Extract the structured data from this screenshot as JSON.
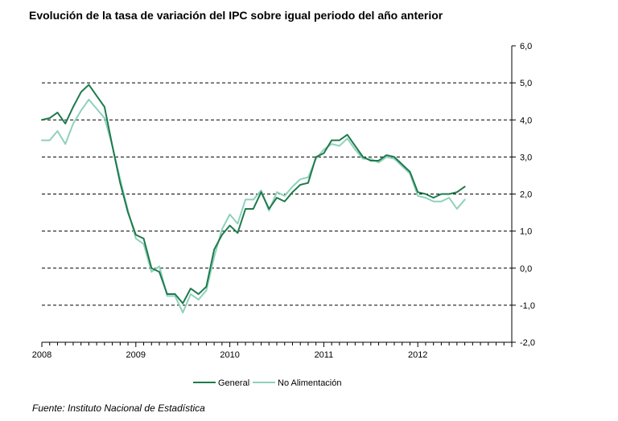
{
  "title": "Evolución de la tasa de variación del IPC sobre igual  periodo del año anterior",
  "source": "Fuente: Instituto Nacional de Estadística",
  "chart_data": {
    "type": "line",
    "title": "Evolución de la tasa de variación del IPC sobre igual  periodo del año anterior",
    "xlabel": "",
    "ylabel": "",
    "ylim": [
      -2.0,
      6.0
    ],
    "y_ticks": [
      6.0,
      5.0,
      4.0,
      3.0,
      2.0,
      1.0,
      0.0,
      -1.0,
      -2.0
    ],
    "y_tick_labels": [
      "6,0",
      "5,0",
      "4,0",
      "3,0",
      "2,0",
      "1,0",
      "0,0",
      "-1,0",
      "-2,0"
    ],
    "grid": "dashed horizontal",
    "legend_position": "bottom",
    "x_tick_labels": [
      "2008",
      "2009",
      "2010",
      "2011",
      "2012"
    ],
    "x": [
      "2008-01",
      "2008-02",
      "2008-03",
      "2008-04",
      "2008-05",
      "2008-06",
      "2008-07",
      "2008-08",
      "2008-09",
      "2008-10",
      "2008-11",
      "2008-12",
      "2009-01",
      "2009-02",
      "2009-03",
      "2009-04",
      "2009-05",
      "2009-06",
      "2009-07",
      "2009-08",
      "2009-09",
      "2009-10",
      "2009-11",
      "2009-12",
      "2010-01",
      "2010-02",
      "2010-03",
      "2010-04",
      "2010-05",
      "2010-06",
      "2010-07",
      "2010-08",
      "2010-09",
      "2010-10",
      "2010-11",
      "2010-12",
      "2011-01",
      "2011-02",
      "2011-03",
      "2011-04",
      "2011-05",
      "2011-06",
      "2011-07",
      "2011-08",
      "2011-09",
      "2011-10",
      "2011-11",
      "2011-12",
      "2012-01",
      "2012-02",
      "2012-03",
      "2012-04",
      "2012-05",
      "2012-06",
      "2012-07"
    ],
    "series": [
      {
        "name": "General",
        "color": "#1e7a4c",
        "values": [
          4.0,
          4.05,
          4.2,
          3.9,
          4.35,
          4.75,
          4.95,
          4.65,
          4.35,
          3.3,
          2.3,
          1.5,
          0.9,
          0.8,
          0.0,
          -0.1,
          -0.7,
          -0.7,
          -0.95,
          -0.55,
          -0.7,
          -0.5,
          0.5,
          0.9,
          1.15,
          0.95,
          1.6,
          1.6,
          2.05,
          1.6,
          1.9,
          1.8,
          2.05,
          2.25,
          2.3,
          3.0,
          3.1,
          3.45,
          3.45,
          3.6,
          3.3,
          3.0,
          2.9,
          2.9,
          3.05,
          3.0,
          2.8,
          2.6,
          2.05,
          2.0,
          1.9,
          2.0,
          2.0,
          2.05,
          2.2
        ]
      },
      {
        "name": "No Alimentación",
        "color": "#8fd1bb",
        "values": [
          3.45,
          3.45,
          3.7,
          3.35,
          3.9,
          4.25,
          4.55,
          4.3,
          4.05,
          3.3,
          2.4,
          1.55,
          0.8,
          0.65,
          -0.1,
          0.05,
          -0.75,
          -0.75,
          -1.2,
          -0.7,
          -0.85,
          -0.6,
          0.3,
          1.05,
          1.45,
          1.2,
          1.85,
          1.85,
          2.1,
          1.55,
          2.05,
          1.95,
          2.2,
          2.4,
          2.45,
          2.95,
          3.2,
          3.35,
          3.3,
          3.5,
          3.2,
          2.95,
          2.95,
          2.85,
          3.0,
          2.95,
          2.75,
          2.55,
          1.95,
          1.9,
          1.8,
          1.8,
          1.9,
          1.6,
          1.85
        ]
      }
    ]
  }
}
